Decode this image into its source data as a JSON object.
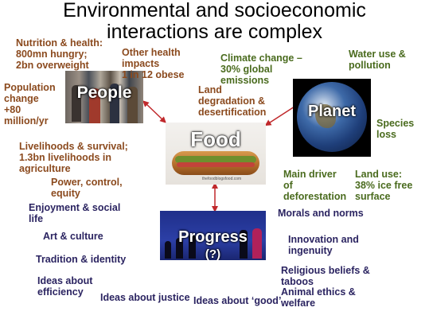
{
  "title": {
    "line1": "Environmental and socioeconomic",
    "line2": "interactions are complex"
  },
  "colors": {
    "people_theme": "#8b4a1e",
    "planet_theme": "#4a6b1e",
    "progress_theme": "#2b2461",
    "arrow": "#c0282b"
  },
  "nodes": {
    "people": "People",
    "planet": "Planet",
    "food": "Food",
    "progress": "Progress",
    "progress_note": "(?)"
  },
  "people_labels": {
    "nutrition": [
      "Nutrition & health:",
      "800mn hungry;",
      "2bn overweight"
    ],
    "other_health": [
      "Other health",
      "impacts",
      "1 in 12 obese"
    ],
    "population": [
      "Population",
      "change",
      "+80",
      "million/yr"
    ],
    "livelihoods": [
      "Livelihoods & survival;",
      "1.3bn livelihoods in",
      "agriculture"
    ],
    "power": [
      "Power, control,",
      "equity"
    ]
  },
  "planet_labels": {
    "climate": [
      "Climate change –",
      "30% global",
      "emissions"
    ],
    "water": [
      "Water use &",
      "pollution"
    ],
    "land_degradation": [
      "Land",
      "degradation &",
      "desertification"
    ],
    "species": [
      "Species",
      "loss"
    ],
    "deforestation": [
      "Main driver",
      "of",
      "deforestation"
    ],
    "land_use": [
      "Land use:",
      "38% ice free",
      "surface"
    ]
  },
  "progress_labels": {
    "enjoyment": [
      "Enjoyment & social",
      "life"
    ],
    "art": [
      "Art & culture"
    ],
    "tradition": [
      "Tradition & identity"
    ],
    "efficiency": [
      "Ideas about",
      "efficiency"
    ],
    "justice": [
      "Ideas about justice"
    ],
    "good": [
      "Ideas about ‘good’"
    ],
    "morals": [
      "Morals and norms"
    ],
    "innovation": [
      "Innovation and",
      "ingenuity"
    ],
    "religion": [
      "Religious beliefs &",
      "taboos"
    ],
    "animal_ethics": [
      "Animal ethics &",
      "welfare"
    ]
  },
  "food_watermark": "thefoodblogsfood.com"
}
